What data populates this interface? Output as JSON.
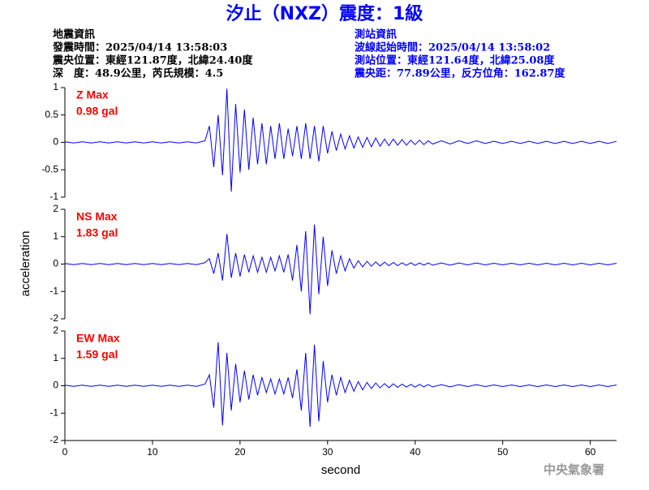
{
  "header": {
    "title": "汐止（NXZ）震度：1級",
    "left_info": [
      "地震資訊",
      "發震時間：2025/04/14 13:58:03",
      "震央位置：東經121.87度，北緯24.40度",
      "深　度：48.9公里，芮氏規模：4.5"
    ],
    "right_info": [
      "測站資訊",
      "波線起始時間：2025/04/14 13:58:02",
      "測站位置：東經121.64度，北緯25.08度",
      "震央距：77.89公里，反方位角：162.87度"
    ],
    "footer": "中央氣象署"
  },
  "chart_data": {
    "type": "line",
    "xlabel": "second",
    "ylabel": "acceleration",
    "xlim": [
      0,
      63
    ],
    "xticks": [
      0,
      10,
      20,
      30,
      40,
      50,
      60
    ],
    "x": [
      0,
      1,
      2,
      3,
      4,
      5,
      6,
      7,
      8,
      9,
      10,
      11,
      12,
      13,
      14,
      15,
      16,
      16.5,
      17,
      17.5,
      18,
      18.5,
      19,
      19.5,
      20,
      20.5,
      21,
      21.5,
      22,
      22.5,
      23,
      23.5,
      24,
      24.5,
      25,
      25.5,
      26,
      26.5,
      27,
      27.5,
      28,
      28.5,
      29,
      29.5,
      30,
      30.5,
      31,
      31.5,
      32,
      32.5,
      33,
      33.5,
      34,
      34.5,
      35,
      35.5,
      36,
      36.5,
      37,
      37.5,
      38,
      38.5,
      39,
      39.5,
      40,
      40.5,
      41,
      41.5,
      42,
      43,
      44,
      45,
      46,
      47,
      48,
      49,
      50,
      51,
      52,
      53,
      54,
      55,
      56,
      57,
      58,
      59,
      60,
      61,
      62,
      63
    ],
    "series": [
      {
        "name": "Z Max",
        "peak_label": "0.98 gal",
        "color": "#0000ff",
        "label_color": "#ff0000",
        "ylim": [
          -1,
          1
        ],
        "yticks": [
          1,
          0.5,
          0,
          -0.5,
          -1
        ],
        "values": [
          0.01,
          -0.01,
          0.01,
          -0.01,
          0.01,
          -0.01,
          0.01,
          -0.01,
          0.01,
          -0.01,
          0.01,
          -0.01,
          0.01,
          -0.01,
          0.01,
          -0.01,
          0.03,
          0.3,
          -0.45,
          0.5,
          -0.6,
          0.98,
          -0.9,
          0.7,
          -0.55,
          0.6,
          -0.5,
          0.45,
          -0.4,
          0.35,
          -0.4,
          0.3,
          -0.3,
          0.35,
          -0.3,
          0.25,
          -0.25,
          0.3,
          -0.3,
          0.35,
          -0.3,
          0.3,
          -0.35,
          0.3,
          -0.2,
          0.2,
          -0.15,
          0.15,
          -0.12,
          0.12,
          -0.1,
          0.1,
          -0.09,
          0.09,
          -0.08,
          0.08,
          -0.07,
          0.06,
          -0.06,
          0.06,
          -0.05,
          0.05,
          -0.05,
          0.04,
          -0.04,
          0.04,
          -0.04,
          0.03,
          -0.03,
          0.03,
          -0.03,
          0.03,
          -0.02,
          0.03,
          -0.02,
          0.02,
          -0.02,
          0.02,
          -0.02,
          0.02,
          -0.02,
          0.02,
          -0.02,
          0.02,
          -0.02,
          0.02,
          -0.02,
          0.02,
          -0.02,
          0.02
        ]
      },
      {
        "name": "NS Max",
        "peak_label": "1.83 gal",
        "color": "#0000ff",
        "label_color": "#ff0000",
        "ylim": [
          -2,
          2
        ],
        "yticks": [
          2,
          1,
          0,
          -1,
          -2
        ],
        "values": [
          0.02,
          -0.02,
          0.02,
          -0.02,
          0.02,
          -0.02,
          0.02,
          -0.02,
          0.02,
          -0.02,
          0.02,
          -0.02,
          0.02,
          -0.02,
          0.02,
          -0.02,
          0.05,
          0.2,
          -0.35,
          0.4,
          -0.6,
          1.1,
          -0.5,
          0.4,
          -0.45,
          0.35,
          -0.3,
          0.3,
          -0.3,
          0.25,
          -0.3,
          0.25,
          -0.25,
          0.3,
          -0.3,
          0.35,
          -0.6,
          0.7,
          -1.0,
          1.2,
          -1.83,
          1.45,
          -1.1,
          1.0,
          -0.8,
          0.5,
          -0.35,
          0.3,
          -0.25,
          0.2,
          -0.15,
          0.12,
          -0.1,
          0.1,
          -0.08,
          0.08,
          -0.07,
          0.07,
          -0.06,
          0.06,
          -0.06,
          0.05,
          -0.05,
          0.05,
          -0.05,
          0.04,
          -0.04,
          0.04,
          -0.04,
          0.04,
          -0.04,
          0.04,
          -0.03,
          0.04,
          -0.03,
          0.03,
          -0.03,
          0.03,
          -0.03,
          0.03,
          -0.03,
          0.03,
          -0.03,
          0.03,
          -0.03,
          0.03,
          -0.03,
          0.03,
          -0.03,
          0.03
        ]
      },
      {
        "name": "EW Max",
        "peak_label": "1.59 gal",
        "color": "#0000ff",
        "label_color": "#ff0000",
        "ylim": [
          -2,
          2
        ],
        "yticks": [
          2,
          1,
          0,
          -1,
          -2
        ],
        "values": [
          0.02,
          -0.02,
          0.02,
          -0.02,
          0.02,
          -0.02,
          0.02,
          -0.02,
          0.02,
          -0.02,
          0.02,
          -0.02,
          0.02,
          -0.02,
          0.02,
          -0.02,
          0.06,
          0.4,
          -0.8,
          1.59,
          -1.45,
          1.2,
          -0.9,
          0.8,
          -0.6,
          0.55,
          -0.5,
          0.4,
          -0.35,
          0.3,
          -0.25,
          0.25,
          -0.3,
          0.25,
          -0.3,
          0.3,
          -0.45,
          0.6,
          -0.9,
          1.2,
          -1.5,
          1.5,
          -1.3,
          0.9,
          -0.6,
          0.4,
          -0.35,
          0.3,
          -0.25,
          0.2,
          -0.2,
          0.15,
          -0.15,
          0.12,
          -0.1,
          0.1,
          -0.08,
          0.08,
          -0.07,
          0.07,
          -0.06,
          0.06,
          -0.05,
          0.05,
          -0.05,
          0.05,
          -0.04,
          0.04,
          -0.04,
          0.04,
          -0.04,
          0.04,
          -0.03,
          0.04,
          -0.03,
          0.03,
          -0.03,
          0.03,
          -0.03,
          0.03,
          -0.03,
          0.03,
          -0.03,
          0.03,
          -0.03,
          0.03,
          -0.03,
          0.03,
          -0.03,
          0.03
        ]
      }
    ]
  }
}
